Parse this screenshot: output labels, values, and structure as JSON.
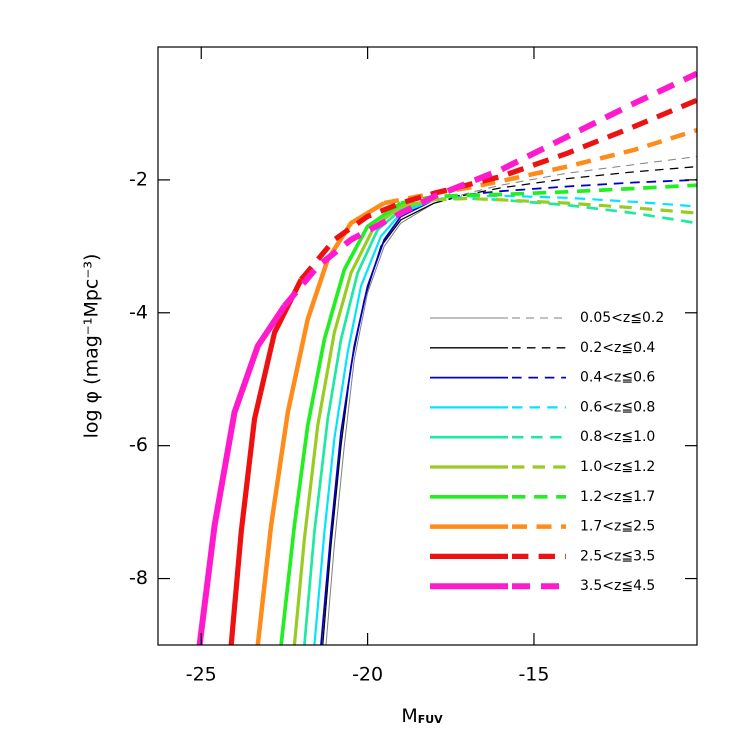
{
  "chart_data": {
    "type": "line",
    "x_label": "M",
    "x_label_subscript": "FUV",
    "y_label": "log φ (mag⁻¹Mpc⁻³)",
    "xlim": [
      -26.3,
      -10.1
    ],
    "ylim": [
      -9,
      0
    ],
    "xticks": [
      -25,
      -20,
      -15
    ],
    "yticks": [
      -8,
      -6,
      -4,
      -2
    ],
    "series": [
      {
        "name": "0.05<z≦0.2",
        "color": "#808080",
        "line_width": 1,
        "dash_from": -18,
        "x": [
          -21.25,
          -21.0,
          -20.7,
          -20.4,
          -20,
          -19.5,
          -19,
          -18,
          -17,
          -16,
          -14,
          -12,
          -10.1
        ],
        "values": [
          -9,
          -7.5,
          -6,
          -4.7,
          -3.7,
          -3,
          -2.65,
          -2.35,
          -2.2,
          -2.08,
          -1.9,
          -1.77,
          -1.65
        ]
      },
      {
        "name": "0.2<z≦0.4",
        "color": "#000000",
        "line_width": 1.3,
        "dash_from": -18,
        "x": [
          -21.35,
          -21.1,
          -20.8,
          -20.5,
          -20.1,
          -19.6,
          -19,
          -18,
          -17,
          -16,
          -14,
          -12,
          -10.1
        ],
        "values": [
          -9,
          -7.5,
          -6,
          -4.8,
          -3.8,
          -3,
          -2.6,
          -2.35,
          -2.22,
          -2.12,
          -1.98,
          -1.88,
          -1.8
        ]
      },
      {
        "name": "0.4<z≦0.6",
        "color": "#0000cc",
        "line_width": 1.8,
        "dash_from": -18,
        "x": [
          -21.4,
          -21.1,
          -20.8,
          -20.4,
          -20,
          -19.5,
          -19,
          -18,
          -17,
          -16,
          -14,
          -12,
          -10.1
        ],
        "values": [
          -9,
          -7.3,
          -5.8,
          -4.5,
          -3.6,
          -2.9,
          -2.55,
          -2.3,
          -2.22,
          -2.17,
          -2.1,
          -2.04,
          -2.0
        ]
      },
      {
        "name": "0.6<z≦0.8",
        "color": "#00e5ff",
        "line_width": 2.2,
        "dash_from": -18,
        "x": [
          -21.6,
          -21.3,
          -21,
          -20.6,
          -20.2,
          -19.6,
          -19,
          -18,
          -17,
          -16,
          -14,
          -12,
          -10.1
        ],
        "values": [
          -9,
          -7.3,
          -5.9,
          -4.6,
          -3.6,
          -2.85,
          -2.5,
          -2.3,
          -2.25,
          -2.24,
          -2.27,
          -2.33,
          -2.4
        ]
      },
      {
        "name": "0.8<z≦1.0",
        "color": "#1de9a0",
        "line_width": 2.7,
        "dash_from": -18,
        "x": [
          -21.9,
          -21.6,
          -21.2,
          -20.8,
          -20.3,
          -19.7,
          -19,
          -18,
          -17,
          -16,
          -14,
          -12,
          -10.1
        ],
        "values": [
          -9,
          -7.3,
          -5.6,
          -4.4,
          -3.4,
          -2.75,
          -2.45,
          -2.3,
          -2.28,
          -2.3,
          -2.38,
          -2.5,
          -2.65
        ]
      },
      {
        "name": "1.0<z≦1.2",
        "color": "#99cc22",
        "line_width": 3.2,
        "dash_from": -18,
        "x": [
          -22.2,
          -21.9,
          -21.5,
          -21,
          -20.5,
          -19.8,
          -19,
          -18,
          -17,
          -16,
          -14,
          -12,
          -10.1
        ],
        "values": [
          -9,
          -7.4,
          -5.7,
          -4.3,
          -3.4,
          -2.7,
          -2.4,
          -2.3,
          -2.28,
          -2.3,
          -2.35,
          -2.42,
          -2.5
        ]
      },
      {
        "name": "1.2<z≦1.7",
        "color": "#22ee22",
        "line_width": 3.7,
        "dash_from": -19,
        "x": [
          -22.6,
          -22.2,
          -21.8,
          -21.3,
          -20.7,
          -20,
          -19,
          -18,
          -17,
          -16,
          -14,
          -12,
          -10.1
        ],
        "values": [
          -9,
          -7.2,
          -5.7,
          -4.4,
          -3.35,
          -2.7,
          -2.35,
          -2.25,
          -2.23,
          -2.22,
          -2.18,
          -2.13,
          -2.08
        ]
      },
      {
        "name": "1.7<z≦2.5",
        "color": "#ff8c1a",
        "line_width": 4.5,
        "dash_from": -19.5,
        "x": [
          -23.3,
          -22.9,
          -22.4,
          -21.8,
          -21.2,
          -20.5,
          -19.5,
          -18,
          -17,
          -16,
          -14,
          -12,
          -10.1
        ],
        "values": [
          -9,
          -7.2,
          -5.5,
          -4.1,
          -3.2,
          -2.65,
          -2.35,
          -2.2,
          -2.12,
          -2.02,
          -1.8,
          -1.55,
          -1.25
        ]
      },
      {
        "name": "2.5<z≦3.5",
        "color": "#ee1111",
        "line_width": 5.2,
        "dash_from": -22,
        "x": [
          -24.1,
          -23.8,
          -23.4,
          -22.8,
          -22,
          -21,
          -20,
          -19,
          -18,
          -16,
          -14,
          -12,
          -10.1
        ],
        "values": [
          -9,
          -7.3,
          -5.6,
          -4.3,
          -3.5,
          -2.9,
          -2.55,
          -2.35,
          -2.2,
          -1.95,
          -1.6,
          -1.2,
          -0.8
        ]
      },
      {
        "name": "3.5<z≦4.5",
        "color": "#ff1acd",
        "line_width": 6,
        "dash_from": -22.5,
        "x": [
          -25.05,
          -24.6,
          -24,
          -23.3,
          -22.5,
          -21.5,
          -20.5,
          -19,
          -18,
          -16,
          -14,
          -12,
          -10.1
        ],
        "values": [
          -9,
          -7.2,
          -5.5,
          -4.5,
          -3.9,
          -3.3,
          -2.9,
          -2.5,
          -2.25,
          -1.85,
          -1.35,
          -0.85,
          -0.4
        ]
      }
    ]
  }
}
